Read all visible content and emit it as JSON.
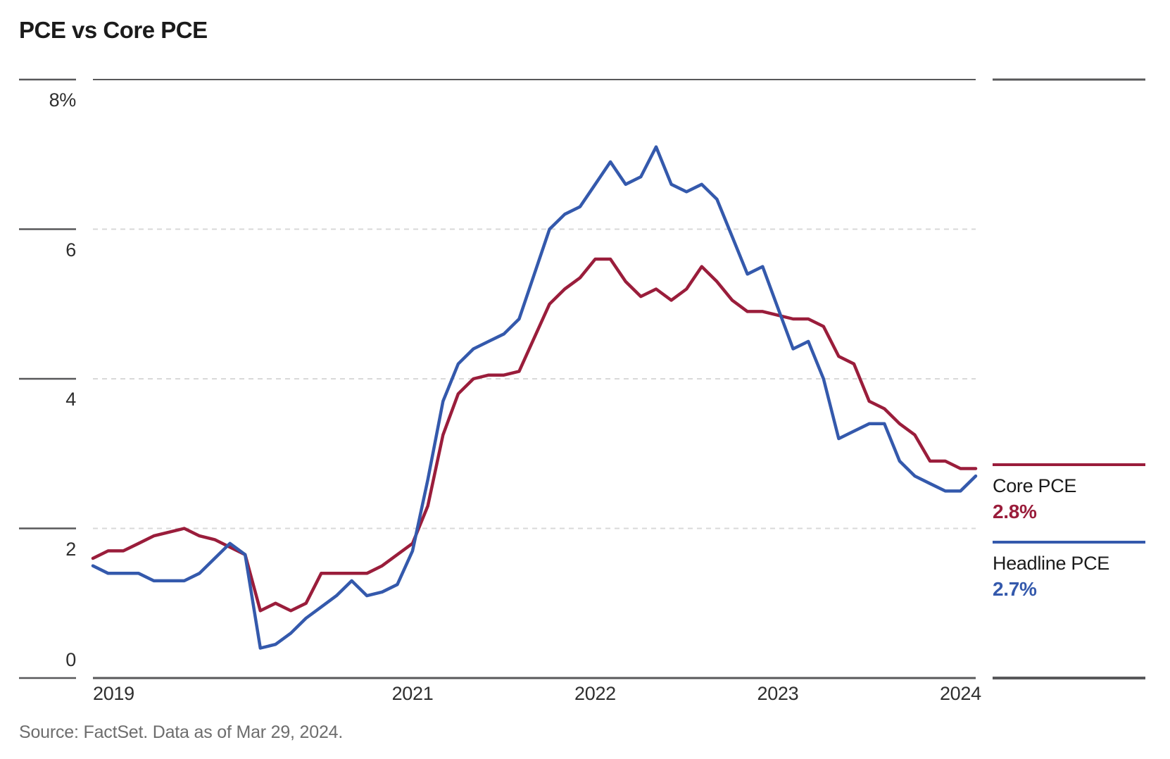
{
  "title": "PCE vs Core PCE",
  "source": "Source: FactSet. Data as of Mar 29, 2024.",
  "colors": {
    "core_pce": "#9A1D3B",
    "headline_pce": "#3459AC",
    "axis_line": "#58585a",
    "dashed_gridline": "#d9d9d9",
    "tick_text": "#2e2e2e",
    "title_text": "#1b1b1b",
    "source_text": "#6d6d6d"
  },
  "chart_data": {
    "type": "line",
    "title": "PCE vs Core PCE",
    "xlabel": "",
    "ylabel": "",
    "ylim": [
      0,
      8
    ],
    "grid": "horizontal; solid dark rules at 0 and 8, light dashed at 2, 4 and 6; short tick stubs left of axis labels and at top/bottom right",
    "legend_position": "right, stacked next to line ends",
    "x_axis": {
      "unit": "monthly points, ~Apr 2019 through Feb 2024",
      "n_points": 59,
      "ticks": [
        {
          "label": "2019",
          "month_index": 0,
          "align": "left"
        },
        {
          "label": "2021",
          "month_index": 21,
          "align": "center"
        },
        {
          "label": "2022",
          "month_index": 33,
          "align": "center"
        },
        {
          "label": "2023",
          "month_index": 45,
          "align": "center"
        },
        {
          "label": "2024",
          "month_index": 57,
          "align": "center"
        }
      ]
    },
    "y_axis": {
      "min": 0,
      "max": 8,
      "ticks": [
        {
          "value": 8,
          "label": "8%"
        },
        {
          "value": 6,
          "label": "6"
        },
        {
          "value": 4,
          "label": "4"
        },
        {
          "value": 2,
          "label": "2"
        },
        {
          "value": 0,
          "label": "0"
        }
      ]
    },
    "series": [
      {
        "name": "Core PCE",
        "end_label": "2.8%",
        "color": "#9A1D3B",
        "values": [
          1.6,
          1.7,
          1.7,
          1.8,
          1.9,
          1.95,
          2.0,
          1.9,
          1.85,
          1.75,
          1.65,
          0.9,
          1.0,
          0.9,
          1.0,
          1.4,
          1.4,
          1.4,
          1.4,
          1.5,
          1.65,
          1.8,
          2.3,
          3.25,
          3.8,
          4.0,
          4.05,
          4.05,
          4.1,
          4.55,
          5.0,
          5.2,
          5.35,
          5.6,
          5.6,
          5.3,
          5.1,
          5.2,
          5.05,
          5.2,
          5.5,
          5.3,
          5.05,
          4.9,
          4.9,
          4.85,
          4.8,
          4.8,
          4.7,
          4.3,
          4.2,
          3.7,
          3.6,
          3.4,
          3.25,
          2.9,
          2.9,
          2.8,
          2.8
        ]
      },
      {
        "name": "Headline PCE",
        "end_label": "2.7%",
        "color": "#3459AC",
        "values": [
          1.5,
          1.4,
          1.4,
          1.4,
          1.3,
          1.3,
          1.3,
          1.4,
          1.6,
          1.8,
          1.65,
          0.4,
          0.45,
          0.6,
          0.8,
          0.95,
          1.1,
          1.3,
          1.1,
          1.15,
          1.25,
          1.7,
          2.65,
          3.7,
          4.2,
          4.4,
          4.5,
          4.6,
          4.8,
          5.4,
          6.0,
          6.2,
          6.3,
          6.6,
          6.9,
          6.6,
          6.7,
          7.1,
          6.6,
          6.5,
          6.6,
          6.4,
          5.9,
          5.4,
          5.5,
          4.95,
          4.4,
          4.5,
          4.0,
          3.2,
          3.3,
          3.4,
          3.4,
          2.9,
          2.7,
          2.6,
          2.5,
          2.5,
          2.7
        ]
      }
    ]
  }
}
